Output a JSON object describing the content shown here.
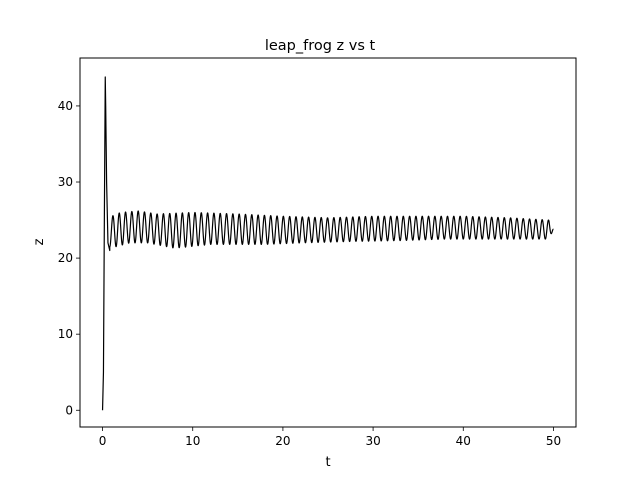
{
  "chart_data": {
    "type": "line",
    "title": "leap_frog z vs t",
    "xlabel": "t",
    "ylabel": "z",
    "xlim": [
      -2.5,
      52.5
    ],
    "ylim": [
      -2.2,
      46.3
    ],
    "xticks": [
      0,
      10,
      20,
      30,
      40,
      50
    ],
    "yticks": [
      0,
      10,
      20,
      30,
      40
    ],
    "grid": false,
    "legend": "none",
    "line_color": "#000000",
    "series": [
      {
        "description_points": {
          "t": [
            0.0,
            0.1,
            0.2,
            0.3,
            0.35,
            0.45,
            0.6,
            0.8,
            1.0,
            1.5,
            2.0,
            3.0,
            4.0,
            5.0,
            6.0,
            8.0,
            10.0,
            12.0,
            15.0,
            18.0,
            20.0,
            22.0,
            25.0,
            28.0,
            30.0,
            33.0,
            35.0,
            38.0,
            40.0,
            42.0,
            45.0,
            48.0,
            49.5,
            50.0
          ],
          "z": [
            0.0,
            5.0,
            25.0,
            43.8,
            40.0,
            30.0,
            22.0,
            21.0,
            25.5,
            21.5,
            26.0,
            22.0,
            26.2,
            22.0,
            25.8,
            21.3,
            26.0,
            21.8,
            25.8,
            21.8,
            25.5,
            22.0,
            25.3,
            22.2,
            25.5,
            22.3,
            25.5,
            22.5,
            25.5,
            22.5,
            25.3,
            22.5,
            25.0,
            23.8
          ]
        }
      }
    ]
  }
}
